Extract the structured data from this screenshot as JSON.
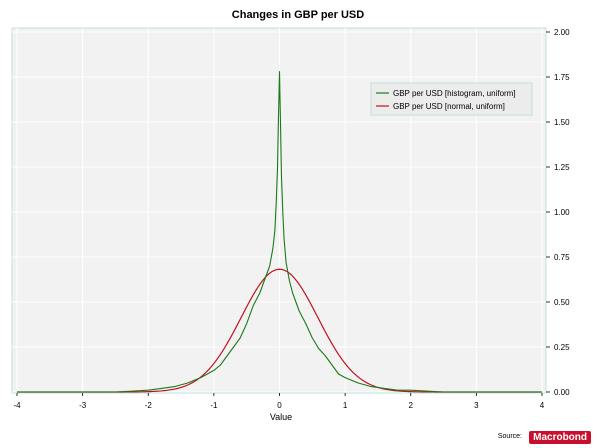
{
  "chart_data": {
    "type": "line",
    "title": "Changes in GBP per USD",
    "xlabel": "Value",
    "ylabel": "",
    "xlim": [
      -4,
      4
    ],
    "ylim": [
      0,
      2
    ],
    "xticks": [
      "-4",
      "-3",
      "-2",
      "-1",
      "0",
      "1",
      "2",
      "3",
      "4"
    ],
    "yticks": [
      "0.00",
      "0.25",
      "0.50",
      "0.75",
      "1.00",
      "1.25",
      "1.50",
      "1.75",
      "2.00"
    ],
    "grid": true,
    "legend_position": "top-right",
    "series": [
      {
        "name": "GBP per USD [histogram, uniform]",
        "color": "#1a7a1a",
        "x": [
          -4,
          -3.5,
          -3,
          -2.5,
          -2,
          -1.8,
          -1.6,
          -1.4,
          -1.2,
          -1.0,
          -0.9,
          -0.8,
          -0.7,
          -0.6,
          -0.5,
          -0.4,
          -0.3,
          -0.25,
          -0.2,
          -0.15,
          -0.1,
          -0.07,
          -0.05,
          -0.03,
          -0.02,
          0,
          0.02,
          0.03,
          0.05,
          0.07,
          0.1,
          0.15,
          0.2,
          0.25,
          0.3,
          0.4,
          0.5,
          0.6,
          0.7,
          0.8,
          0.9,
          1.0,
          1.2,
          1.4,
          1.6,
          1.8,
          2.0,
          2.5,
          3.0,
          3.5,
          4.0
        ],
        "y": [
          0.0,
          0.0,
          0.0,
          0.0,
          0.01,
          0.02,
          0.03,
          0.05,
          0.08,
          0.12,
          0.15,
          0.2,
          0.25,
          0.3,
          0.38,
          0.48,
          0.55,
          0.6,
          0.65,
          0.7,
          0.8,
          0.9,
          1.05,
          1.25,
          1.45,
          1.78,
          1.4,
          1.2,
          1.0,
          0.85,
          0.72,
          0.62,
          0.55,
          0.5,
          0.45,
          0.38,
          0.3,
          0.24,
          0.2,
          0.15,
          0.1,
          0.08,
          0.05,
          0.03,
          0.02,
          0.01,
          0.01,
          0.0,
          0.0,
          0.0,
          0.0
        ]
      },
      {
        "name": "GBP per USD [normal, uniform]",
        "color": "#c0141e",
        "mean": 0.0,
        "sd": 0.585
      }
    ]
  },
  "source": {
    "label": "Source:",
    "brand": "Macrobond"
  }
}
